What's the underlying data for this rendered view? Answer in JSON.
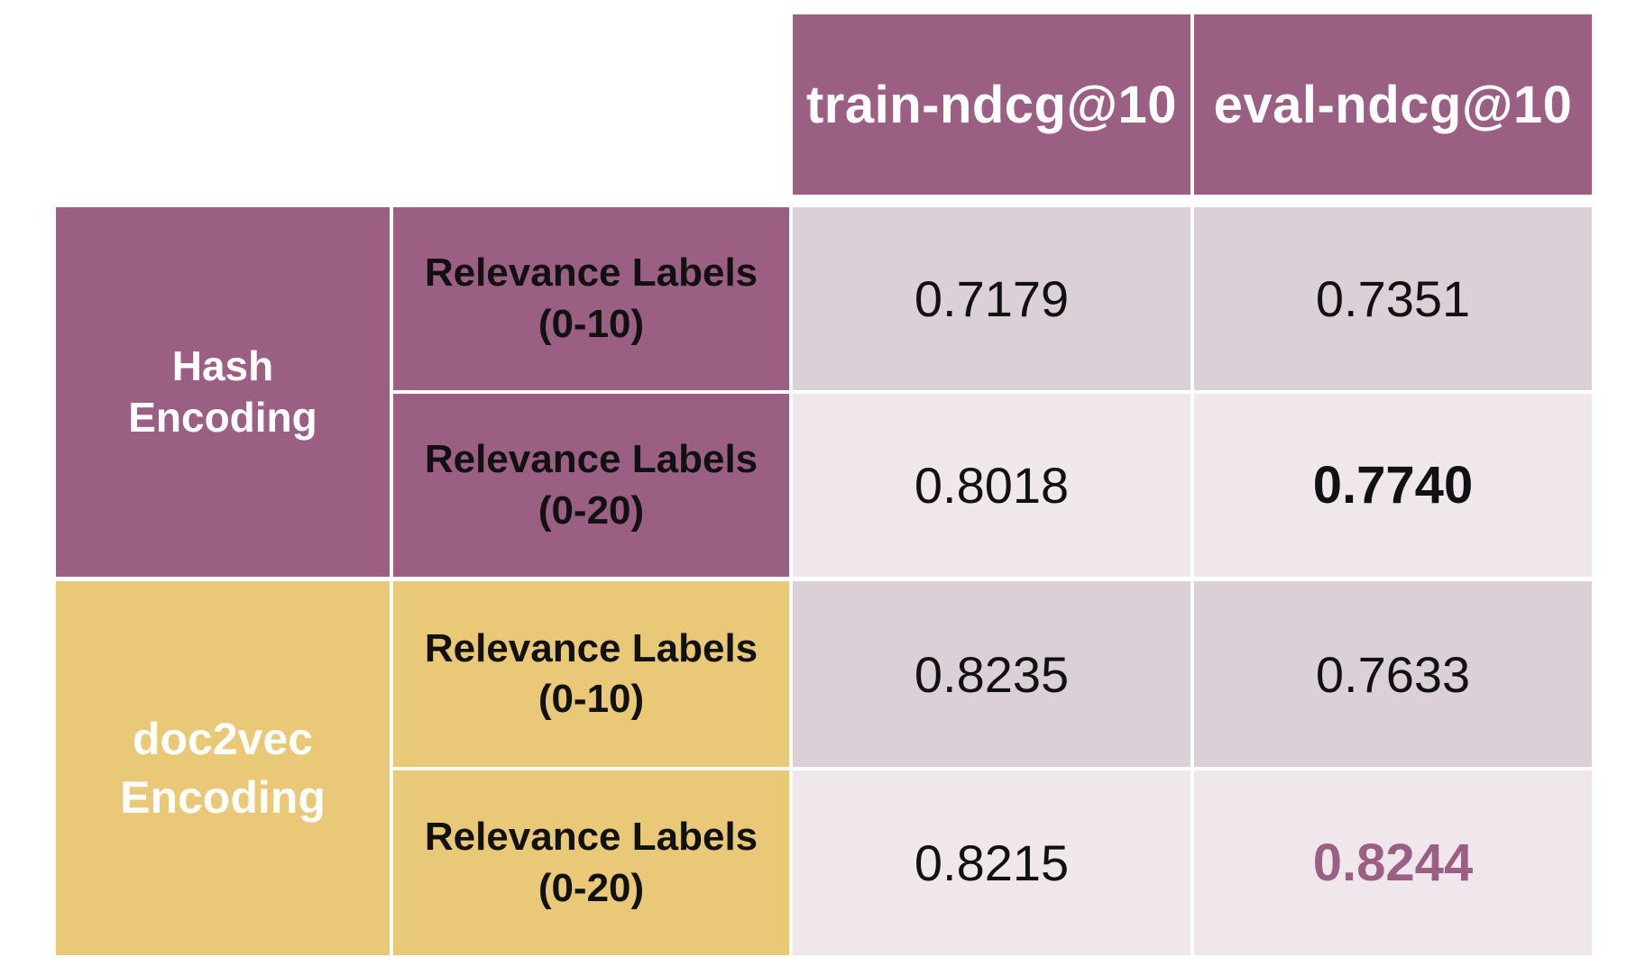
{
  "chart_data": {
    "type": "table",
    "columns": [
      "train-ndcg@10",
      "eval-ndcg@10"
    ],
    "groups": [
      {
        "label_lines": [
          "Hash",
          "Encoding"
        ],
        "color": "#9b5f83",
        "rows": [
          {
            "label_lines": [
              "Relevance Labels",
              "(0-10)"
            ],
            "values": [
              "0.7179",
              "0.7351"
            ]
          },
          {
            "label_lines": [
              "Relevance Labels",
              "(0-20)"
            ],
            "values": [
              "0.8018",
              "0.7740"
            ]
          }
        ]
      },
      {
        "label_lines": [
          "doc2vec",
          "Encoding"
        ],
        "color": "#e9c878",
        "rows": [
          {
            "label_lines": [
              "Relevance Labels",
              "(0-10)"
            ],
            "values": [
              "0.8235",
              "0.7633"
            ]
          },
          {
            "label_lines": [
              "Relevance Labels",
              "(0-20)"
            ],
            "values": [
              "0.8215",
              "0.8244"
            ]
          }
        ]
      }
    ],
    "highlights": {
      "best_hash_eval": "0.7740",
      "best_overall_eval": "0.8244"
    },
    "colors": {
      "header": "#9b5f83",
      "hash": "#9b5f83",
      "doc2vec": "#e9c878",
      "row_shade_dark": "#dcd0d8",
      "row_shade_light": "#f0e7ed",
      "accent_text": "#9b5f83"
    }
  }
}
